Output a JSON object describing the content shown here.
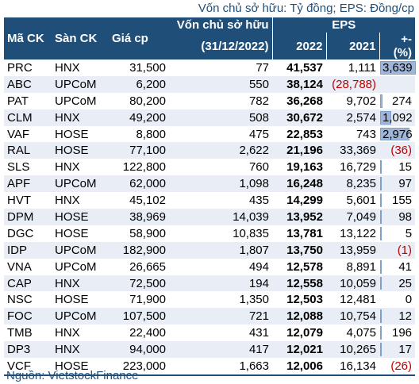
{
  "unit_note": "Vốn chủ sở hữu: Tỷ đồng; EPS: Đồng/cp",
  "headers": {
    "ticker": "Mã CK",
    "exchange": "Sàn CK",
    "price": "Giá cp",
    "equity_line1": "Vốn chủ sở hữu",
    "equity_line2": "(31/12/2022)",
    "eps": "EPS",
    "eps_2022": "2022",
    "eps_2021": "2021",
    "change": "+-(%)"
  },
  "rows": [
    {
      "ticker": "PRC",
      "exchange": "HNX",
      "price": "31,500",
      "equity": "77",
      "eps2022": "41,537",
      "eps2021": "1,111",
      "change": "3,639",
      "change_value": 3639,
      "negative": false
    },
    {
      "ticker": "ABC",
      "exchange": "UPCoM",
      "price": "6,200",
      "equity": "550",
      "eps2022": "38,124",
      "eps2021": "(28,788)",
      "change": "",
      "change_value": null,
      "negative": false,
      "eps2021_negative": true
    },
    {
      "ticker": "PAT",
      "exchange": "UPCoM",
      "price": "80,200",
      "equity": "782",
      "eps2022": "36,268",
      "eps2021": "9,702",
      "change": "274",
      "change_value": 274,
      "negative": false
    },
    {
      "ticker": "CLM",
      "exchange": "HNX",
      "price": "49,200",
      "equity": "508",
      "eps2022": "30,672",
      "eps2021": "2,574",
      "change": "1,092",
      "change_value": 1092,
      "negative": false
    },
    {
      "ticker": "VAF",
      "exchange": "HOSE",
      "price": "8,800",
      "equity": "475",
      "eps2022": "22,853",
      "eps2021": "743",
      "change": "2,976",
      "change_value": 2976,
      "negative": false
    },
    {
      "ticker": "RAL",
      "exchange": "HOSE",
      "price": "77,100",
      "equity": "2,622",
      "eps2022": "21,196",
      "eps2021": "33,369",
      "change": "(36)",
      "change_value": -36,
      "negative": true
    },
    {
      "ticker": "SLS",
      "exchange": "HNX",
      "price": "122,800",
      "equity": "760",
      "eps2022": "19,163",
      "eps2021": "16,729",
      "change": "15",
      "change_value": 15,
      "negative": false
    },
    {
      "ticker": "APF",
      "exchange": "UPCoM",
      "price": "62,000",
      "equity": "1,098",
      "eps2022": "16,248",
      "eps2021": "8,235",
      "change": "97",
      "change_value": 97,
      "negative": false
    },
    {
      "ticker": "HVT",
      "exchange": "HNX",
      "price": "45,102",
      "equity": "435",
      "eps2022": "14,299",
      "eps2021": "5,601",
      "change": "155",
      "change_value": 155,
      "negative": false
    },
    {
      "ticker": "DPM",
      "exchange": "HOSE",
      "price": "38,969",
      "equity": "14,039",
      "eps2022": "13,952",
      "eps2021": "7,049",
      "change": "98",
      "change_value": 98,
      "negative": false
    },
    {
      "ticker": "DGC",
      "exchange": "HOSE",
      "price": "58,900",
      "equity": "10,835",
      "eps2022": "13,781",
      "eps2021": "13,122",
      "change": "5",
      "change_value": 5,
      "negative": false
    },
    {
      "ticker": "IDP",
      "exchange": "UPCoM",
      "price": "182,900",
      "equity": "1,807",
      "eps2022": "13,750",
      "eps2021": "13,959",
      "change": "(1)",
      "change_value": -1,
      "negative": true
    },
    {
      "ticker": "VNA",
      "exchange": "UPCoM",
      "price": "26,665",
      "equity": "494",
      "eps2022": "12,578",
      "eps2021": "8,891",
      "change": "41",
      "change_value": 41,
      "negative": false
    },
    {
      "ticker": "CAP",
      "exchange": "HNX",
      "price": "72,500",
      "equity": "194",
      "eps2022": "12,558",
      "eps2021": "10,059",
      "change": "25",
      "change_value": 25,
      "negative": false
    },
    {
      "ticker": "NSC",
      "exchange": "HOSE",
      "price": "71,900",
      "equity": "1,350",
      "eps2022": "12,503",
      "eps2021": "12,481",
      "change": "0",
      "change_value": 0,
      "negative": false
    },
    {
      "ticker": "FOC",
      "exchange": "UPCoM",
      "price": "107,500",
      "equity": "721",
      "eps2022": "12,088",
      "eps2021": "10,754",
      "change": "12",
      "change_value": 12,
      "negative": false
    },
    {
      "ticker": "TMB",
      "exchange": "HNX",
      "price": "22,400",
      "equity": "431",
      "eps2022": "12,079",
      "eps2021": "4,075",
      "change": "196",
      "change_value": 196,
      "negative": false
    },
    {
      "ticker": "DP3",
      "exchange": "HNX",
      "price": "94,000",
      "equity": "417",
      "eps2022": "12,021",
      "eps2021": "10,265",
      "change": "17",
      "change_value": 17,
      "negative": false
    },
    {
      "ticker": "VCF",
      "exchange": "HOSE",
      "price": "223,000",
      "equity": "1,663",
      "eps2022": "12,006",
      "eps2021": "16,134",
      "change": "(26)",
      "change_value": -26,
      "negative": true
    }
  ],
  "bar_max": 3639,
  "source": "Nguồn: VietstockFinance",
  "colors": {
    "header_bg": "#1f4e79",
    "stripe": "#e9eef6",
    "bar": "#9fb6d9",
    "negative": "#c00000"
  }
}
